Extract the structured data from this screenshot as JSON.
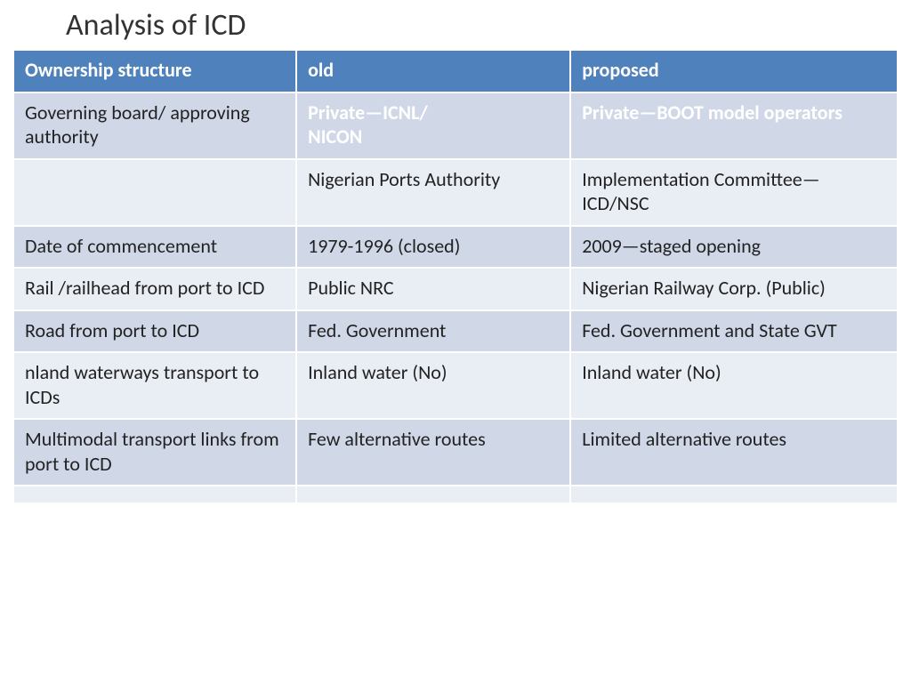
{
  "title": "Analysis of ICD",
  "table": {
    "header_bg": "#4f81bd",
    "header_fg": "#ffffff",
    "band_a_bg": "#d0d8e8",
    "band_b_bg": "#e9edf4",
    "emph_fg": "#ffffff",
    "norm_fg": "#222222",
    "columns": [
      "Ownership structure",
      "old",
      "proposed"
    ],
    "rows": [
      {
        "band": "a",
        "cells": [
          {
            "text": "Governing board/ approving authority",
            "style": "norm"
          },
          {
            "text": "Private—ICNL/\nNICON",
            "style": "emph"
          },
          {
            "text": "Private—BOOT model operators",
            "style": "emph"
          }
        ]
      },
      {
        "band": "b",
        "cells": [
          {
            "text": "",
            "style": "norm"
          },
          {
            "text": "Nigerian Ports Authority",
            "style": "norm"
          },
          {
            "text": "Implementation Committee—\nICD/NSC",
            "style": "norm"
          }
        ]
      },
      {
        "band": "a",
        "cells": [
          {
            "text": "Date of commencement",
            "style": "norm"
          },
          {
            "text": "1979-1996 (closed)",
            "style": "norm"
          },
          {
            "text": "2009—staged opening",
            "style": "norm"
          }
        ]
      },
      {
        "band": "b",
        "cells": [
          {
            "text": "Rail /railhead from port to ICD",
            "style": "norm"
          },
          {
            "text": "Public NRC",
            "style": "norm"
          },
          {
            "text": "Nigerian Railway Corp. (Public)",
            "style": "norm"
          }
        ]
      },
      {
        "band": "a",
        "cells": [
          {
            "text": "Road from port to ICD",
            "style": "norm"
          },
          {
            "text": "Fed. Government",
            "style": "norm"
          },
          {
            "text": "Fed. Government and State GVT",
            "style": "norm"
          }
        ]
      },
      {
        "band": "b",
        "cells": [
          {
            "text": "nland waterways transport to ICDs",
            "style": "norm"
          },
          {
            "text": "Inland water (No)",
            "style": "norm"
          },
          {
            "text": "Inland water (No)",
            "style": "norm"
          }
        ]
      },
      {
        "band": "a",
        "cells": [
          {
            "text": "Multimodal transport links from port to ICD",
            "style": "norm"
          },
          {
            "text": "Few alternative routes",
            "style": "norm"
          },
          {
            "text": "Limited alternative routes",
            "style": "norm"
          }
        ]
      },
      {
        "band": "b",
        "cells": [
          {
            "text": " ",
            "style": "norm"
          },
          {
            "text": " ",
            "style": "norm"
          },
          {
            "text": " ",
            "style": "norm"
          }
        ]
      }
    ]
  }
}
